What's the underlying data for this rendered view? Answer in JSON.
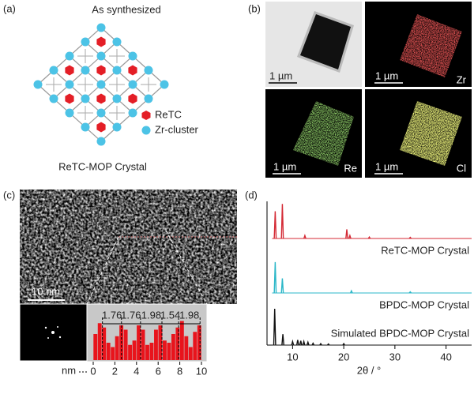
{
  "panel_a": {
    "label": "(a)",
    "title": "As synthesized",
    "legend": [
      "ReTC",
      "Zr-cluster"
    ],
    "caption": "ReTC-MOP Crystal"
  },
  "panel_b": {
    "label": "(b)",
    "scale_bars": [
      "1 µm",
      "1 µm",
      "1 µm",
      "1 µm"
    ],
    "element_labels": [
      "Zr",
      "Re",
      "Cl"
    ]
  },
  "panel_c": {
    "label": "(c)",
    "scale_bar": "10 nm",
    "spacings": [
      1.76,
      1.76,
      1.98,
      1.54,
      1.98
    ],
    "histogram": {
      "type": "histogram",
      "x_label": "nm",
      "color": "#e8141c",
      "xlim": [
        0,
        10
      ],
      "xticks": [
        0,
        2,
        4,
        6,
        8,
        10
      ],
      "bins": [
        0,
        0.4,
        0.8,
        1.2,
        1.6,
        2,
        2.4,
        2.8,
        3.2,
        3.6,
        4,
        4.4,
        4.8,
        5.2,
        5.6,
        6,
        6.4,
        6.8,
        7.2,
        7.6,
        8,
        8.4,
        8.8,
        9.2,
        9.6,
        10
      ],
      "values": [
        60,
        85,
        75,
        40,
        30,
        55,
        80,
        70,
        35,
        45,
        80,
        70,
        35,
        40,
        70,
        80,
        45,
        40,
        60,
        75,
        90,
        55,
        30,
        65,
        80
      ]
    }
  },
  "panel_d": {
    "label": "(d)"
  },
  "chart_data": {
    "type": "line",
    "x_label": "2θ / °",
    "xlim": [
      5,
      45
    ],
    "xticks": [
      10,
      20,
      30,
      40
    ],
    "series": [
      {
        "name": "ReTC-MOP Crystal",
        "color": "#d42a35",
        "x": [
          6.6,
          8.0,
          12.4,
          20.6,
          21.2,
          25,
          33
        ],
        "values": [
          75,
          95,
          8,
          25,
          8,
          4,
          3
        ]
      },
      {
        "name": "BPDC-MOP Crystal",
        "color": "#2bb7c8",
        "x": [
          6.6,
          8.0,
          21.5,
          33
        ],
        "values": [
          85,
          40,
          6,
          3
        ]
      },
      {
        "name": "Simulated BPDC-MOP Crystal",
        "color": "#111111",
        "x": [
          6.5,
          8.1,
          10,
          11,
          11.6,
          12.2,
          13,
          14,
          15.5,
          17,
          20
        ],
        "values": [
          100,
          30,
          10,
          14,
          12,
          10,
          8,
          5,
          4,
          3,
          4
        ]
      }
    ]
  }
}
